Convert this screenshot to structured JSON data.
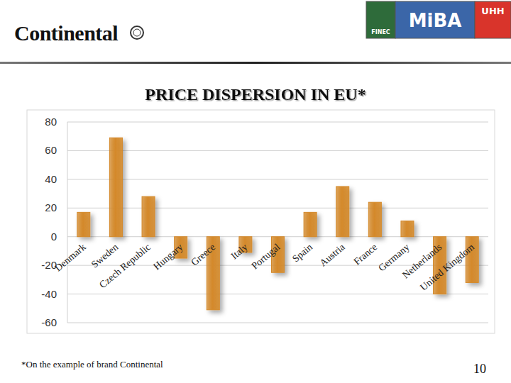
{
  "chart_data": {
    "type": "bar",
    "title": "PRICE DISPERSION IN EU*",
    "categories": [
      "Denmark",
      "Sweden",
      "Czech Republic",
      "Hungary",
      "Greece",
      "Italy",
      "Portugal",
      "Spain",
      "Austria",
      "France",
      "Germany",
      "Netherlands",
      "United Kingdom"
    ],
    "values": [
      17,
      69,
      28,
      -15,
      -51,
      -11,
      -25,
      17,
      35,
      24,
      11,
      -40,
      -32
    ],
    "color": "#d4892a",
    "ylim": [
      -60,
      80
    ],
    "yticks": [
      -60,
      -40,
      -20,
      0,
      20,
      40,
      60,
      80
    ],
    "grid": true
  },
  "header": {
    "logo": "Continental",
    "partner_logos": [
      "FINEC",
      "MiBA",
      "UHH"
    ]
  },
  "footer": {
    "note": "*On the example of brand Continental",
    "page": "10"
  }
}
